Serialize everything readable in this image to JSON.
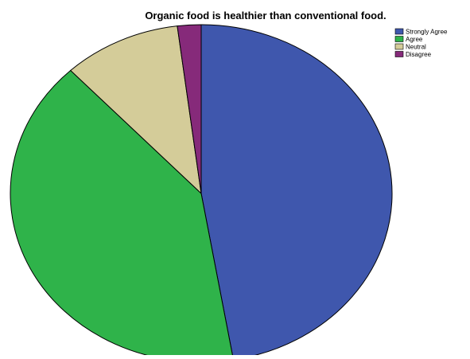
{
  "chart_data": {
    "type": "pie",
    "title": "Organic food is healthier than conventional food.",
    "categories": [
      "Strongly Agree",
      "Agree",
      "Neutral",
      "Disagree"
    ],
    "values": [
      47.3,
      40.7,
      10.0,
      2.0
    ],
    "colors": [
      "#3f57ad",
      "#2fb34a",
      "#d4cc99",
      "#862a7a"
    ],
    "start_angle_deg": 0,
    "direction": "clockwise",
    "legend_position": "top-right",
    "data_labels": false
  }
}
